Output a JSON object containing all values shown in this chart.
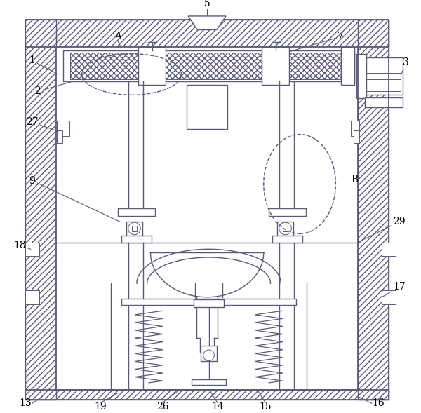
{
  "bg_color": "#ffffff",
  "line_color": "#5a5a7a",
  "figsize": [
    6.0,
    5.89
  ],
  "dpi": 100,
  "hatch_color": "#8888aa"
}
